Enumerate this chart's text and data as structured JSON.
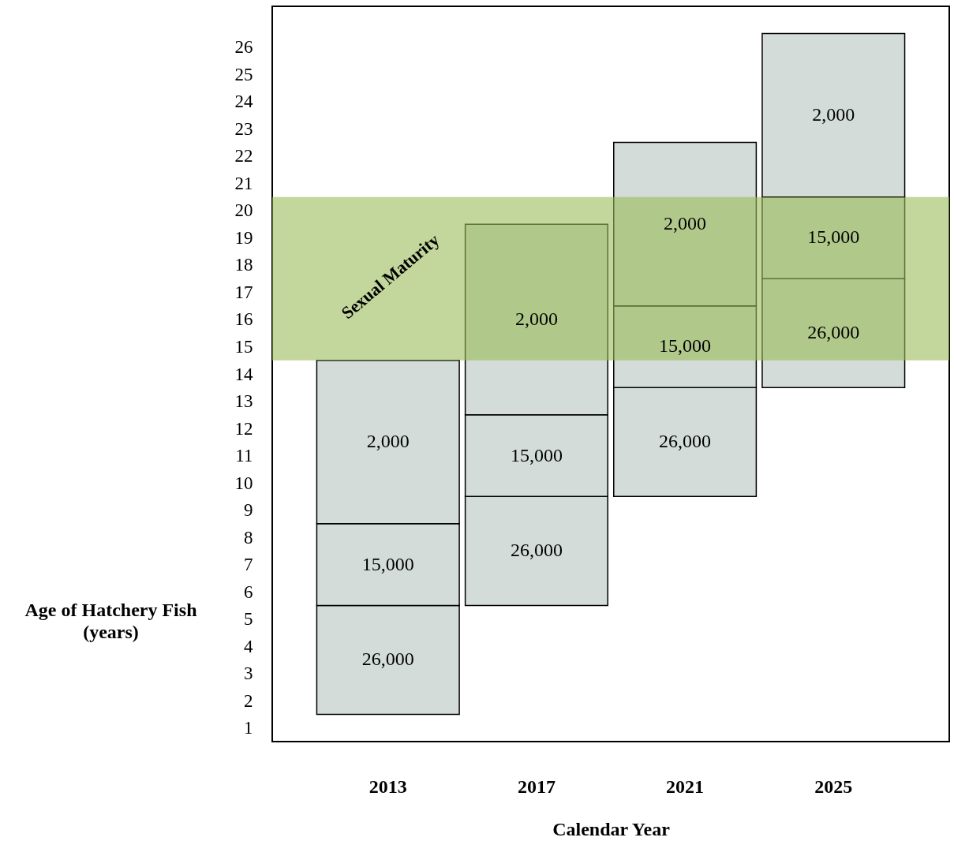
{
  "chart_data": {
    "type": "bar",
    "xlabel": "Calendar Year",
    "ylabel": "Age of Hatchery Fish\n(years)",
    "categories": [
      "2013",
      "2017",
      "2021",
      "2025"
    ],
    "series": [
      {
        "name": "26,000",
        "color": "#d3dcd8",
        "base": [
          1.5,
          5.5,
          9.5,
          13.5
        ],
        "values": [
          4,
          4,
          4,
          4
        ]
      },
      {
        "name": "15,000",
        "color": "#d3dcd8",
        "base": [
          5.5,
          9.5,
          13.5,
          17.5
        ],
        "values": [
          3,
          3,
          3,
          3
        ]
      },
      {
        "name": "2,000",
        "color": "#d3dcd8",
        "base": [
          8.5,
          12.5,
          16.5,
          20.5
        ],
        "values": [
          6,
          7,
          6,
          6
        ]
      }
    ],
    "ylim": [
      0.5,
      27.5
    ],
    "yticks": [
      1,
      2,
      3,
      4,
      5,
      6,
      7,
      8,
      9,
      10,
      11,
      12,
      13,
      14,
      15,
      16,
      17,
      18,
      19,
      20,
      21,
      22,
      23,
      24,
      25,
      26
    ],
    "bands": [
      {
        "axis": "y",
        "from": 14.5,
        "to": 20.5,
        "label": "Sexual Maturity",
        "color": "#9bbb59"
      }
    ],
    "grid": false
  }
}
